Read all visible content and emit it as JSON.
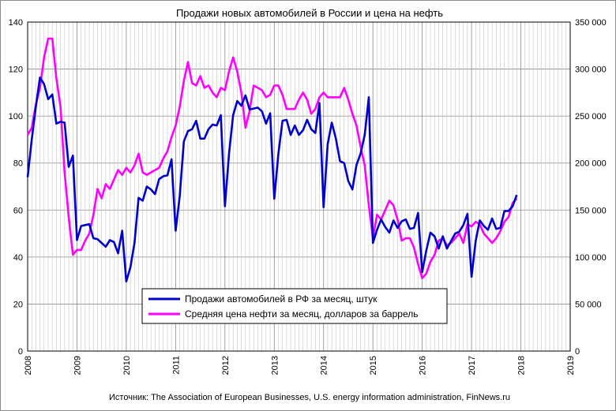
{
  "chart_data": {
    "type": "line",
    "title": "Продажи новых автомобилей в России и цена на нефть",
    "source": "Источник: The Association of European Businesses, U.S. energy information administration, FinNews.ru",
    "grid": true,
    "legend_position": "bottom-center",
    "x_axis": {
      "range": [
        2008,
        2019
      ],
      "ticks": [
        "2008",
        "2009",
        "2010",
        "2011",
        "2012",
        "2013",
        "2014",
        "2015",
        "2016",
        "2017",
        "2018",
        "2019"
      ]
    },
    "y_left": {
      "range": [
        0,
        140
      ],
      "ticks": [
        "0",
        "20",
        "40",
        "60",
        "80",
        "100",
        "120",
        "140"
      ]
    },
    "y_right": {
      "range": [
        0,
        350000
      ],
      "ticks": [
        "0",
        "50 000",
        "100 000",
        "150 000",
        "200 000",
        "250 000",
        "300 000",
        "350 000"
      ]
    },
    "series": [
      {
        "name": "Продажи автомобилей в РФ за месяц, штук",
        "axis": "right",
        "color": "#0000cc",
        "start": "2008-01",
        "values": [
          185000,
          225000,
          260000,
          291000,
          284000,
          268000,
          273000,
          242000,
          244000,
          243000,
          196000,
          208000,
          118000,
          133000,
          134000,
          135000,
          120000,
          119000,
          115000,
          111000,
          118000,
          116000,
          104000,
          128000,
          74000,
          89000,
          115000,
          163000,
          160000,
          175000,
          172000,
          167000,
          183000,
          186000,
          187000,
          204000,
          128000,
          165000,
          223000,
          234000,
          236000,
          245000,
          226000,
          226000,
          236000,
          241000,
          240000,
          251000,
          154000,
          210000,
          251000,
          266000,
          261000,
          272000,
          257000,
          258000,
          259000,
          255000,
          242000,
          253000,
          162000,
          210000,
          245000,
          246000,
          230000,
          240000,
          230000,
          235000,
          246000,
          236000,
          232000,
          264000,
          153000,
          220000,
          243000,
          226000,
          202000,
          200000,
          181000,
          172000,
          198000,
          210000,
          230000,
          270000,
          115000,
          129000,
          140000,
          132000,
          126000,
          139000,
          131000,
          138000,
          140000,
          130000,
          131000,
          147000,
          84000,
          107000,
          126000,
          122000,
          109000,
          122000,
          109000,
          117000,
          125000,
          127000,
          134000,
          146000,
          79000,
          117000,
          139000,
          133000,
          129000,
          141000,
          130000,
          131000,
          149000,
          149000,
          154000,
          166000
        ]
      },
      {
        "name": "Средняя цена нефти за месяц, долларов за баррель",
        "axis": "left",
        "color": "#ff00ff",
        "start": "2008-01",
        "values": [
          92,
          95,
          105,
          112,
          125,
          133,
          133,
          116,
          104,
          76,
          57,
          41,
          43,
          43,
          47,
          50,
          58,
          69,
          65,
          71,
          69,
          73,
          77,
          75,
          78,
          76,
          79,
          84,
          76,
          75,
          76,
          77,
          78,
          82,
          85,
          91,
          96,
          104,
          115,
          123,
          114,
          113,
          117,
          112,
          113,
          110,
          108,
          112,
          111,
          119,
          125,
          119,
          110,
          95,
          102,
          113,
          112,
          111,
          108,
          109,
          113,
          113,
          109,
          103,
          103,
          103,
          107,
          110,
          107,
          101,
          103,
          108,
          110,
          108,
          108,
          108,
          108,
          112,
          107,
          101,
          96,
          87,
          79,
          62,
          48,
          58,
          56,
          60,
          64,
          62,
          56,
          47,
          48,
          48,
          44,
          37,
          31,
          33,
          38,
          41,
          47,
          48,
          45,
          46,
          48,
          50,
          46,
          54,
          53,
          55,
          54,
          50,
          48,
          46,
          48,
          51,
          55,
          57,
          63,
          65
        ]
      }
    ]
  }
}
